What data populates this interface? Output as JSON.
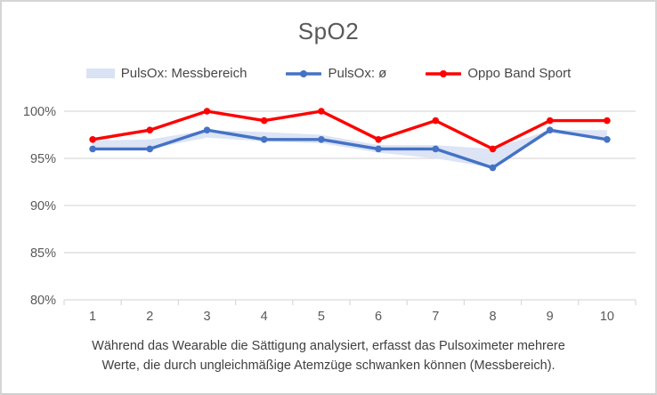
{
  "window": {
    "border_color": "#d5d5d5",
    "background": "#ffffff"
  },
  "chart_data": {
    "type": "line",
    "title": "SpO2",
    "categories": [
      "1",
      "2",
      "3",
      "4",
      "5",
      "6",
      "7",
      "8",
      "9",
      "10"
    ],
    "xlabel": "",
    "ylabel": "",
    "y_axis": {
      "min": 80,
      "max": 100,
      "unit": "%",
      "ticks": [
        100,
        95,
        90,
        85,
        80
      ],
      "tick_labels": [
        "100%",
        "95%",
        "90%",
        "85%",
        "80%"
      ]
    },
    "grid": true,
    "legend_position": "top",
    "text_color": "#595959",
    "grid_color": "#d9d9d9",
    "series": [
      {
        "name": "PulsOx: Messbereich",
        "type": "area-band",
        "color": "#dae3f4",
        "upper": [
          96.9,
          97,
          98,
          97.8,
          97.5,
          96.4,
          96.4,
          96,
          98,
          98
        ],
        "lower": [
          96,
          96,
          97.2,
          96.8,
          96.6,
          95.6,
          95,
          94,
          97.7,
          97
        ]
      },
      {
        "name": "PulsOx: ø",
        "type": "line",
        "color": "#4472c4",
        "values": [
          96,
          96,
          98,
          97,
          97,
          96,
          96,
          94,
          98,
          97
        ]
      },
      {
        "name": "Oppo Band Sport",
        "type": "line",
        "color": "#ff0000",
        "values": [
          97,
          98,
          100,
          99,
          100,
          97,
          99,
          96,
          99,
          99
        ]
      }
    ]
  },
  "caption": {
    "line1": "Während das Wearable die Sättigung analysiert, erfasst das Pulsoximeter mehrere",
    "line2": "Werte, die durch ungleichmäßige Atemzüge schwanken können (Messbereich)."
  }
}
